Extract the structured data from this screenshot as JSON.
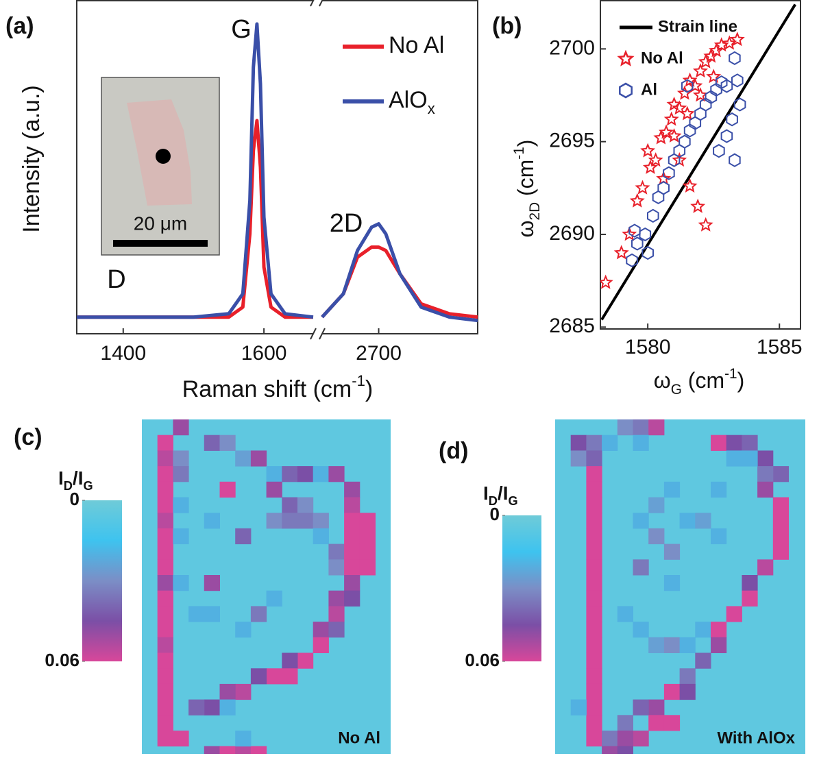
{
  "chart_data": [
    {
      "type": "line",
      "panel_label": "(a)",
      "xlabel": [
        {
          "text": "Raman shift (cm"
        },
        {
          "text": "-1",
          "shift": "super"
        },
        {
          "text": ")"
        }
      ],
      "ylabel": [
        {
          "text": "Intensity (a.u.)"
        }
      ],
      "annotations": [
        "G",
        "2D",
        "D"
      ],
      "inset_label": "20 μm",
      "axis_break": true,
      "xlim": [
        [
          1334,
          1670
        ],
        [
          2620,
          2840
        ]
      ],
      "xticks": [
        1400,
        1600,
        2700
      ],
      "ylim": [
        0,
        100
      ],
      "x": [
        1334,
        1400,
        1500,
        1550,
        1570,
        1580,
        1585,
        1590,
        1595,
        1600,
        1610,
        1630,
        1670,
        2000,
        2620,
        2650,
        2670,
        2690,
        2700,
        2710,
        2730,
        2760,
        2800,
        2840
      ],
      "series": [
        {
          "name": [
            {
              "text": "No Al"
            }
          ],
          "color": "#e8202a",
          "values": [
            5,
            5,
            5,
            5,
            8,
            30,
            55,
            64,
            50,
            20,
            8,
            5,
            5,
            null,
            5,
            12,
            23,
            26,
            26,
            25,
            18,
            9,
            6,
            5
          ]
        },
        {
          "name": [
            {
              "text": "AlO"
            },
            {
              "text": "x",
              "shift": "sub"
            }
          ],
          "color": "#3a4fa8",
          "values": [
            5,
            5,
            5,
            6,
            12,
            40,
            80,
            93,
            75,
            35,
            12,
            6,
            5,
            null,
            5,
            12,
            25,
            32,
            33,
            30,
            18,
            8,
            5,
            4
          ]
        }
      ]
    },
    {
      "type": "scatter",
      "panel_label": "(b)",
      "xlabel": [
        {
          "text": "ω"
        },
        {
          "text": "G",
          "shift": "sub"
        },
        {
          "text": " (cm"
        },
        {
          "text": "-1",
          "shift": "super"
        },
        {
          "text": ")"
        }
      ],
      "ylabel": [
        {
          "text": "ω"
        },
        {
          "text": "2D",
          "shift": "sub"
        },
        {
          "text": " (cm"
        },
        {
          "text": "-1",
          "shift": "super"
        },
        {
          "text": ")"
        }
      ],
      "xlim": [
        1578.2,
        1585.8
      ],
      "ylim": [
        2684.9,
        2702.6
      ],
      "xticks": [
        1580,
        1585
      ],
      "yticks": [
        2685,
        2690,
        2695,
        2700
      ],
      "series": [
        {
          "name": "Strain line",
          "marker": "line",
          "color": "#000000",
          "x": [
            1578.25,
            1585.6
          ],
          "values": [
            2685.4,
            2702.4
          ]
        },
        {
          "name": "No Al",
          "marker": "star",
          "color": "#e8202a",
          "x": [
            1578.4,
            1579.0,
            1579.3,
            1579.6,
            1579.8,
            1580.1,
            1580.3,
            1580.5,
            1580.7,
            1580.9,
            1581.0,
            1581.2,
            1581.4,
            1581.6,
            1581.8,
            1582.0,
            1582.2,
            1582.4,
            1582.6,
            1582.8,
            1583.1,
            1581.2,
            1581.6,
            1581.9,
            1582.2,
            1580.6,
            1581.0,
            1581.5,
            1582.0,
            1582.5,
            1583.4,
            1580.0
          ],
          "values": [
            2687.4,
            2689.0,
            2690.0,
            2691.8,
            2692.5,
            2693.6,
            2694.0,
            2695.2,
            2695.5,
            2696.2,
            2697.0,
            2696.8,
            2697.6,
            2698.3,
            2698.0,
            2698.8,
            2699.3,
            2699.6,
            2699.9,
            2700.2,
            2700.3,
            2694.0,
            2692.6,
            2691.5,
            2690.5,
            2693.0,
            2695.3,
            2696.5,
            2697.5,
            2698.5,
            2700.5,
            2694.5
          ]
        },
        {
          "name": "Al",
          "marker": "hexagon",
          "color": "#3a4fa8",
          "x": [
            1579.4,
            1579.6,
            1579.9,
            1580.2,
            1580.4,
            1580.6,
            1580.8,
            1581.0,
            1581.2,
            1581.4,
            1581.6,
            1581.8,
            1582.0,
            1582.2,
            1582.4,
            1582.6,
            1582.8,
            1583.0,
            1583.3,
            1583.4,
            1583.5,
            1583.2,
            1583.0,
            1583.3,
            1582.7,
            1581.5,
            1580.0,
            1579.5
          ],
          "values": [
            2688.6,
            2689.5,
            2690.0,
            2691.0,
            2692.0,
            2692.5,
            2693.3,
            2694.0,
            2694.5,
            2695.0,
            2695.6,
            2696.0,
            2696.5,
            2697.0,
            2697.4,
            2697.8,
            2698.2,
            2698.0,
            2699.5,
            2698.3,
            2697.0,
            2696.2,
            2695.3,
            2694.0,
            2694.5,
            2698.0,
            2689.0,
            2690.2
          ]
        }
      ]
    },
    {
      "type": "heatmap",
      "panel_label": "(c)",
      "annotation": "No Al",
      "colorbar_label": [
        {
          "text": "I"
        },
        {
          "text": "D",
          "shift": "sub"
        },
        {
          "text": "/I"
        },
        {
          "text": "G",
          "shift": "sub"
        }
      ],
      "zlim": [
        0,
        0.06
      ],
      "zticks": [
        0,
        0.06
      ],
      "colormap": [
        "#6fcbd8",
        "#3ec3ef",
        "#7b8ec6",
        "#7b4fa6",
        "#d8479a"
      ],
      "background_value": 0.005,
      "cols": [
        2,
        1,
        4,
        5,
        6,
        7,
        1,
        2,
        8,
        9,
        10,
        11,
        12,
        5,
        8,
        1,
        2,
        1,
        1,
        1,
        1,
        1,
        1,
        1,
        1,
        1,
        1,
        1,
        1,
        1,
        1,
        1,
        1,
        2,
        2,
        2,
        9,
        10,
        4,
        8,
        9,
        10,
        11,
        6,
        11,
        4,
        12,
        12,
        3,
        4,
        7,
        8,
        6,
        13,
        13,
        13,
        14,
        13,
        14,
        13,
        14,
        13,
        14,
        13,
        12,
        13,
        12,
        11,
        12,
        11,
        10,
        9,
        9,
        8,
        7,
        6,
        5,
        4,
        3,
        5,
        1,
        2,
        4,
        5,
        6,
        7,
        6
      ],
      "rows": [
        0,
        1,
        1,
        1,
        2,
        2,
        2,
        2,
        3,
        3,
        3,
        3,
        3,
        4,
        4,
        3,
        3,
        4,
        5,
        6,
        7,
        8,
        9,
        10,
        11,
        12,
        13,
        14,
        15,
        16,
        17,
        18,
        19,
        5,
        7,
        10,
        5,
        5,
        6,
        6,
        6,
        6,
        6,
        7,
        7,
        10,
        8,
        9,
        12,
        12,
        12,
        11,
        13,
        4,
        5,
        6,
        6,
        7,
        7,
        8,
        8,
        9,
        9,
        10,
        11,
        11,
        12,
        13,
        13,
        14,
        15,
        15,
        16,
        16,
        16,
        17,
        17,
        18,
        18,
        18,
        20,
        20,
        21,
        21,
        21,
        21,
        20
      ],
      "values": [
        0.05,
        0.06,
        0.04,
        0.03,
        0.025,
        0.05,
        0.055,
        0.03,
        0.02,
        0.04,
        0.045,
        0.02,
        0.05,
        0.06,
        0.05,
        0.06,
        0.035,
        0.06,
        0.06,
        0.055,
        0.06,
        0.06,
        0.06,
        0.05,
        0.06,
        0.06,
        0.06,
        0.055,
        0.06,
        0.06,
        0.06,
        0.06,
        0.06,
        0.02,
        0.02,
        0.02,
        0.04,
        0.03,
        0.02,
        0.03,
        0.035,
        0.035,
        0.03,
        0.04,
        0.02,
        0.05,
        0.035,
        0.03,
        0.02,
        0.02,
        0.035,
        0.02,
        0.02,
        0.05,
        0.055,
        0.06,
        0.06,
        0.06,
        0.06,
        0.06,
        0.06,
        0.06,
        0.06,
        0.05,
        0.05,
        0.045,
        0.055,
        0.05,
        0.04,
        0.06,
        0.06,
        0.045,
        0.06,
        0.06,
        0.045,
        0.055,
        0.05,
        0.045,
        0.04,
        0.02,
        0.06,
        0.06,
        0.05,
        0.06,
        0.055,
        0.06,
        0.02
      ]
    },
    {
      "type": "heatmap",
      "panel_label": "(d)",
      "annotation": "With AlOx",
      "colorbar_label": [
        {
          "text": "I"
        },
        {
          "text": "D",
          "shift": "sub"
        },
        {
          "text": "/I"
        },
        {
          "text": "G",
          "shift": "sub"
        }
      ],
      "zlim": [
        0,
        0.06
      ],
      "zticks": [
        0,
        0.06
      ],
      "colormap": [
        "#6fcbd8",
        "#3ec3ef",
        "#7b8ec6",
        "#7b4fa6",
        "#d8479a"
      ],
      "background_value": 0.005,
      "cols": [
        4,
        5,
        6,
        1,
        2,
        1,
        2,
        3,
        5,
        10,
        11,
        12,
        13,
        14,
        13,
        12,
        11,
        2,
        2,
        2,
        2,
        2,
        2,
        2,
        2,
        2,
        2,
        2,
        2,
        2,
        2,
        2,
        2,
        2,
        2,
        3,
        6,
        7,
        10,
        5,
        8,
        9,
        6,
        10,
        5,
        7,
        7,
        4,
        5,
        6,
        7,
        8,
        9,
        14,
        14,
        14,
        14,
        13,
        13,
        12,
        12,
        11,
        10,
        10,
        9,
        8,
        7,
        8,
        6,
        5,
        6,
        7,
        4,
        5,
        4,
        3,
        4,
        1
      ],
      "rows": [
        0,
        0,
        0,
        1,
        1,
        2,
        2,
        1,
        1,
        1,
        1,
        1,
        2,
        3,
        3,
        2,
        2,
        3,
        4,
        5,
        6,
        7,
        8,
        9,
        10,
        11,
        12,
        13,
        14,
        15,
        16,
        17,
        18,
        19,
        20,
        20,
        5,
        4,
        4,
        6,
        6,
        6,
        7,
        7,
        9,
        8,
        10,
        12,
        13,
        14,
        14,
        14,
        13,
        5,
        6,
        7,
        8,
        4,
        9,
        10,
        11,
        12,
        13,
        14,
        15,
        16,
        17,
        17,
        18,
        18,
        19,
        19,
        19,
        20,
        20,
        21,
        21,
        18
      ],
      "values": [
        0.03,
        0.035,
        0.055,
        0.045,
        0.035,
        0.03,
        0.04,
        0.02,
        0.02,
        0.06,
        0.045,
        0.04,
        0.045,
        0.04,
        0.035,
        0.02,
        0.02,
        0.06,
        0.06,
        0.06,
        0.06,
        0.06,
        0.06,
        0.06,
        0.06,
        0.06,
        0.06,
        0.06,
        0.06,
        0.06,
        0.06,
        0.06,
        0.06,
        0.06,
        0.06,
        0.035,
        0.025,
        0.02,
        0.02,
        0.02,
        0.02,
        0.025,
        0.03,
        0.02,
        0.035,
        0.03,
        0.02,
        0.02,
        0.02,
        0.025,
        0.03,
        0.02,
        0.02,
        0.06,
        0.06,
        0.06,
        0.06,
        0.05,
        0.055,
        0.045,
        0.06,
        0.06,
        0.06,
        0.05,
        0.04,
        0.035,
        0.06,
        0.045,
        0.05,
        0.04,
        0.06,
        0.06,
        0.035,
        0.055,
        0.05,
        0.05,
        0.045,
        0.02
      ]
    }
  ]
}
